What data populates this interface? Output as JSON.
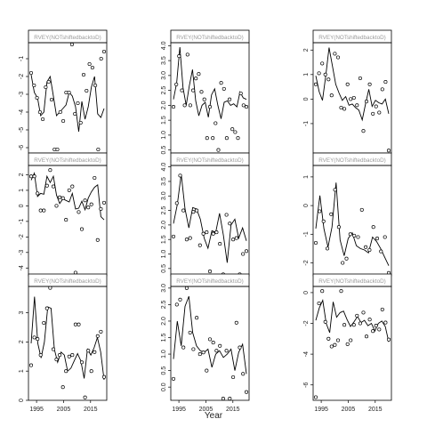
{
  "figure": {
    "xlabel": "Year"
  },
  "colors": {
    "line": "#000000",
    "point_fill": "#ffffff",
    "point_stroke": "#000000",
    "panel_border": "#000000",
    "strip_text": "#9a9a9a"
  },
  "chart_data": [
    {
      "type": "line",
      "strip": "RVEY(NOTshiftedbacktoD)",
      "x": [
        1993,
        1994,
        1995,
        1996,
        1997,
        1998,
        1999,
        2000,
        2001,
        2002,
        2003,
        2004,
        2005,
        2006,
        2007,
        2008,
        2009,
        2010,
        2011,
        2012,
        2013,
        2014,
        2015,
        2016,
        2017,
        2018,
        2019,
        2020
      ],
      "points": [
        -1.8,
        -2.5,
        -3.2,
        -4.0,
        -4.4,
        -2.6,
        -2.3,
        -3.3,
        -6.1,
        -6.1,
        -4.0,
        -4.5,
        -2.9,
        -2.9,
        -0.2,
        -4.1,
        -3.5,
        -4.6,
        -1.9,
        -2.8,
        -1.3,
        -1.5,
        -2.5,
        -6.1,
        -1.0,
        -0.6
      ],
      "fit": [
        -1.9,
        -2.9,
        -3.2,
        -4.2,
        -4.0,
        -2.3,
        -2.0,
        -3.1,
        -4.2,
        -4.0,
        -3.8,
        -3.6,
        -2.9,
        -3.1,
        -3.7,
        -5.1,
        -3.4,
        -4.4,
        -3.7,
        -2.6,
        -2.0,
        -4.1,
        -4.3,
        -3.8
      ],
      "ylim": [
        -6.3,
        -0.1
      ],
      "yticks": [
        -6,
        -5,
        -4,
        -3,
        -2,
        -1
      ],
      "show_xticks": false
    },
    {
      "type": "line",
      "strip": "RVEY(NOTshiftedbacktoD)",
      "x": [
        1993,
        1994,
        1995,
        1996,
        1997,
        1998,
        1999,
        2000,
        2001,
        2002,
        2003,
        2004,
        2005,
        2006,
        2007,
        2008,
        2009,
        2010,
        2011,
        2012,
        2013,
        2014,
        2015,
        2016,
        2017,
        2018,
        2019,
        2020
      ],
      "points": [
        1.95,
        2.7,
        3.65,
        2.5,
        2.0,
        3.7,
        2.0,
        2.5,
        2.9,
        3.05,
        2.45,
        2.2,
        0.9,
        1.95,
        0.9,
        1.4,
        0.5,
        2.75,
        2.55,
        0.9,
        2.2,
        1.2,
        1.1,
        0.9,
        2.4,
        2.0,
        1.95
      ],
      "fit": [
        2.2,
        2.75,
        3.95,
        2.6,
        2.0,
        2.65,
        3.2,
        2.15,
        1.65,
        2.0,
        2.1,
        1.6,
        2.35,
        2.55,
        2.0,
        1.55,
        2.1,
        2.15,
        2.0,
        2.05,
        1.95,
        2.45,
        2.25,
        2.2
      ],
      "ylim": [
        0.4,
        4.1
      ],
      "yticks": [
        0.5,
        1.0,
        1.5,
        2.0,
        2.5,
        3.0,
        3.5,
        4.0
      ],
      "show_xticks": false
    },
    {
      "type": "line",
      "strip": "RVEY(NOTshiftedbacktoD)",
      "x": [
        1993,
        1994,
        1995,
        1996,
        1997,
        1998,
        1999,
        2000,
        2001,
        2002,
        2003,
        2004,
        2005,
        2006,
        2007,
        2008,
        2009,
        2010,
        2011,
        2012,
        2013,
        2014,
        2015,
        2016,
        2017,
        2018,
        2019,
        2020
      ],
      "points": [
        0.6,
        1.05,
        1.45,
        1.0,
        0.8,
        0.15,
        1.85,
        1.7,
        -0.35,
        -0.4,
        0.6,
        0.0,
        0.05,
        -0.25,
        0.85,
        -1.3,
        -0.1,
        0.6,
        -0.6,
        -0.3,
        -0.55,
        0.4,
        0.7,
        -2.1
      ],
      "fit": [
        0.95,
        0.3,
        -0.05,
        0.95,
        2.1,
        1.35,
        0.6,
        0.25,
        -0.05,
        0.1,
        -0.25,
        -0.2,
        -0.35,
        -0.45,
        -0.85,
        -0.2,
        0.4,
        -0.3,
        -0.05,
        -0.15,
        -0.2,
        0.0,
        -0.6
      ],
      "ylim": [
        -2.2,
        2.3
      ],
      "yticks": [
        -1,
        0,
        1,
        2
      ],
      "show_xticks": false
    },
    {
      "type": "line",
      "strip": "RVEY(NOTshiftedbacktoD)",
      "x": [
        1993,
        1994,
        1995,
        1996,
        1997,
        1998,
        1999,
        2000,
        2001,
        2002,
        2003,
        2004,
        2005,
        2006,
        2007,
        2008,
        2009,
        2010,
        2011,
        2012,
        2013,
        2014,
        2015,
        2016,
        2017,
        2018,
        2019,
        2020
      ],
      "points": [
        1.9,
        1.9,
        0.8,
        -0.3,
        -0.3,
        1.3,
        2.3,
        1.25,
        0.0,
        0.55,
        0.5,
        -0.9,
        1.0,
        1.25,
        -4.3,
        -0.4,
        -1.5,
        0.35,
        -0.1,
        0.1,
        1.8,
        -2.2,
        -0.2,
        0.2
      ],
      "fit": [
        1.65,
        2.1,
        0.6,
        0.8,
        0.75,
        1.9,
        1.5,
        1.9,
        0.7,
        0.15,
        0.45,
        0.35,
        0.25,
        0.8,
        -0.2,
        -0.15,
        0.3,
        -0.25,
        0.5,
        0.9,
        1.2,
        1.35,
        -0.7,
        -0.9
      ],
      "ylim": [
        -4.5,
        2.6
      ],
      "yticks": [
        -4,
        -3,
        -2,
        -1,
        0,
        1,
        2
      ],
      "show_xticks": false
    },
    {
      "type": "line",
      "strip": "RVEY(NOTshiftedbacktoD)",
      "x": [
        1993,
        1994,
        1995,
        1996,
        1997,
        1998,
        1999,
        2000,
        2001,
        2002,
        2003,
        2004,
        2005,
        2006,
        2007,
        2008,
        2009,
        2010,
        2011,
        2012,
        2013,
        2014,
        2015,
        2016,
        2017,
        2018,
        2019,
        2020
      ],
      "points": [
        1.6,
        2.75,
        3.7,
        2.5,
        1.5,
        1.55,
        2.45,
        2.5,
        1.3,
        1.7,
        1.75,
        0.4,
        1.7,
        1.75,
        1.35,
        0.3,
        2.35,
        2.05,
        1.5,
        1.55,
        0.3,
        1.0,
        1.1
      ],
      "fit": [
        2.05,
        2.7,
        3.75,
        2.55,
        1.9,
        2.6,
        2.55,
        2.2,
        1.55,
        1.2,
        1.8,
        1.75,
        2.4,
        1.65,
        0.7,
        2.0,
        2.2,
        1.55,
        1.9,
        1.45
      ],
      "ylim": [
        0.25,
        4.05
      ],
      "yticks": [
        0.5,
        1.0,
        1.5,
        2.0,
        2.5,
        3.0,
        3.5,
        4.0
      ],
      "show_xticks": false
    },
    {
      "type": "line",
      "strip": "RVEY(NOTshiftedbacktoD)",
      "x": [
        1993,
        1994,
        1995,
        1996,
        1997,
        1998,
        1999,
        2000,
        2001,
        2002,
        2003,
        2004,
        2005,
        2006,
        2007,
        2008,
        2009,
        2010,
        2011,
        2012,
        2013,
        2014,
        2015,
        2016,
        2017,
        2018,
        2019,
        2020
      ],
      "points": [
        -1.3,
        -0.2,
        -0.55,
        -1.5,
        -0.3,
        0.55,
        -0.75,
        -2.0,
        -1.85,
        -1.0,
        -1.05,
        -1.1,
        -0.15,
        -1.45,
        -1.55,
        -0.75,
        -1.15,
        -1.6,
        -1.1,
        -2.35
      ],
      "fit": [
        -0.8,
        0.35,
        -0.8,
        -1.45,
        -0.75,
        0.8,
        -1.2,
        -1.75,
        -1.15,
        -0.95,
        -1.4,
        -1.5,
        -1.55,
        -1.65,
        -1.1,
        -1.25,
        -1.5,
        -1.8,
        -2.1
      ],
      "ylim": [
        -2.45,
        1.4
      ],
      "yticks": [
        -2,
        -1,
        0,
        1
      ],
      "show_xticks": false
    },
    {
      "type": "line",
      "strip": "RVEY(NOTshiftedbacktoD)",
      "x": [
        1993,
        1994,
        1995,
        1996,
        1997,
        1998,
        1999,
        2000,
        2001,
        2002,
        2003,
        2004,
        2005,
        2006,
        2007,
        2008,
        2009,
        2010,
        2011,
        2012,
        2013,
        2014,
        2015,
        2016,
        2017,
        2018,
        2019,
        2020
      ],
      "points": [
        1.2,
        2.15,
        2.1,
        1.55,
        2.65,
        3.15,
        3.85,
        1.75,
        1.4,
        1.55,
        0.45,
        1.0,
        1.5,
        1.55,
        2.6,
        2.6,
        1.3,
        0.1,
        1.7,
        1.0,
        1.65,
        2.2,
        2.35,
        0.8
      ],
      "fit": [
        1.95,
        3.55,
        1.95,
        1.45,
        2.0,
        3.2,
        3.15,
        1.75,
        1.3,
        1.65,
        1.55,
        1.0,
        1.1,
        1.35,
        1.6,
        1.35,
        0.75,
        1.75,
        1.55,
        1.8,
        2.15,
        1.65,
        0.7
      ],
      "ylim": [
        0,
        3.9
      ],
      "yticks": [
        0,
        1,
        2,
        3
      ],
      "show_xticks": true
    },
    {
      "type": "line",
      "strip": "RVEY(NOTshiftedbacktoD)",
      "x": [
        1993,
        1994,
        1995,
        1996,
        1997,
        1998,
        1999,
        2000,
        2001,
        2002,
        2003,
        2004,
        2005,
        2006,
        2007,
        2008,
        2009,
        2010,
        2011,
        2012,
        2013,
        2014,
        2015,
        2016,
        2017,
        2018,
        2019,
        2020
      ],
      "points": [
        0.25,
        2.5,
        2.65,
        1.2,
        3.0,
        1.65,
        1.15,
        2.1,
        1.0,
        1.05,
        0.5,
        1.45,
        1.35,
        1.1,
        1.25,
        -0.35,
        1.1,
        -0.35,
        0.3,
        1.95,
        1.2,
        0.4,
        -0.15
      ],
      "fit": [
        0.85,
        2.0,
        1.25,
        2.45,
        2.75,
        1.65,
        1.25,
        1.1,
        1.05,
        1.15,
        0.6,
        1.0,
        1.1,
        0.9,
        1.0,
        1.15,
        0.5,
        1.05,
        1.3,
        0.4
      ],
      "ylim": [
        -0.4,
        3.05
      ],
      "yticks": [
        0.0,
        0.5,
        1.0,
        1.5,
        2.0,
        2.5,
        3.0
      ],
      "show_xticks": true
    },
    {
      "type": "line",
      "strip": "RVEY(NOTshiftedbacktoD)",
      "x": [
        1993,
        1994,
        1995,
        1996,
        1997,
        1998,
        1999,
        2000,
        2001,
        2002,
        2003,
        2004,
        2005,
        2006,
        2007,
        2008,
        2009,
        2010,
        2011,
        2012,
        2013,
        2014,
        2015,
        2016,
        2017,
        2018,
        2019,
        2020
      ],
      "points": [
        -6.8,
        -0.7,
        0.1,
        -1.9,
        -3.0,
        -3.5,
        -3.4,
        -3.1,
        0.1,
        -2.1,
        -3.35,
        -3.1,
        -2.1,
        -1.5,
        -2.0,
        -1.3,
        -2.85,
        -1.75,
        -2.5,
        -2.15,
        -2.4,
        -1.1,
        -1.95,
        -3.05
      ],
      "fit": [
        -1.8,
        -1.0,
        -0.5,
        -2.0,
        -2.6,
        -0.6,
        -1.6,
        -1.3,
        -1.2,
        -1.75,
        -2.2,
        -1.9,
        -1.55,
        -1.95,
        -1.8,
        -2.15,
        -2.0,
        -2.5,
        -2.0,
        -1.85,
        -2.2,
        -3.2
      ],
      "ylim": [
        -7.0,
        0.4
      ],
      "yticks": [
        -6,
        -4,
        -2,
        0
      ],
      "show_xticks": true
    }
  ],
  "xaxis": {
    "xlim": [
      1992,
      2021
    ],
    "xticks": [
      1995,
      2005,
      2015
    ],
    "tick_labels": [
      "1995",
      "2005",
      "2015"
    ]
  }
}
